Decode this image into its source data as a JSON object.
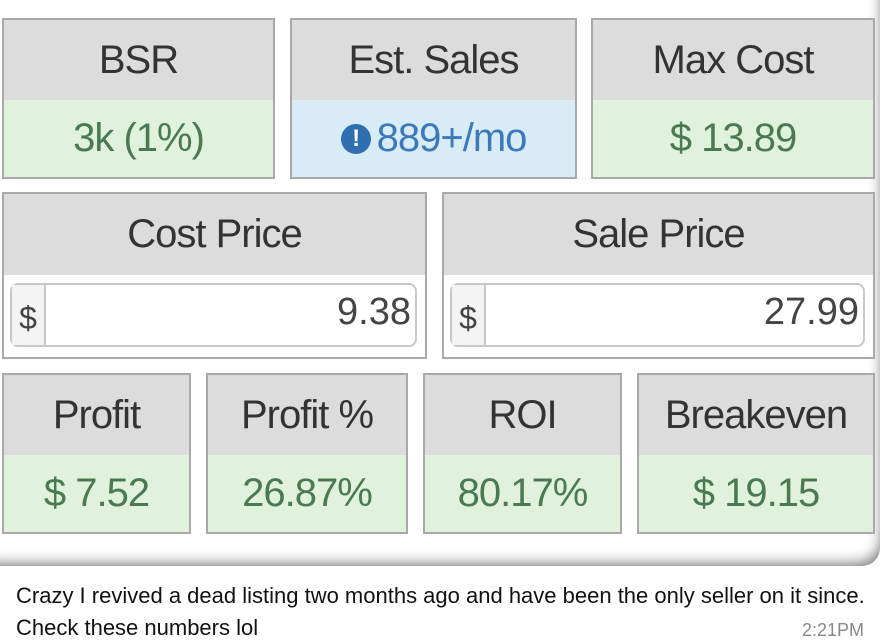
{
  "metrics_row1": [
    {
      "label": "BSR",
      "value": "3k (1%)",
      "style": "green"
    },
    {
      "label": "Est. Sales",
      "value": "889+/mo",
      "style": "blue",
      "icon": "info-icon"
    },
    {
      "label": "Max Cost",
      "value": "$ 13.89",
      "style": "green"
    }
  ],
  "inputs": [
    {
      "label": "Cost Price",
      "currency": "$",
      "value": "9.38"
    },
    {
      "label": "Sale Price",
      "currency": "$",
      "value": "27.99"
    }
  ],
  "metrics_row3": [
    {
      "label": "Profit",
      "value": "$ 7.52"
    },
    {
      "label": "Profit %",
      "value": "26.87%"
    },
    {
      "label": "ROI",
      "value": "80.17%"
    },
    {
      "label": "Breakeven",
      "value": "$ 19.15"
    }
  ],
  "message": {
    "text": "Crazy I revived a dead listing two months ago and have been the only seller on it since. Check these numbers lol",
    "time": "2:21PM"
  },
  "colors": {
    "header": "#dcdcdc",
    "green_cell": "#e0f2dc",
    "blue_cell": "#d8ecf8"
  }
}
